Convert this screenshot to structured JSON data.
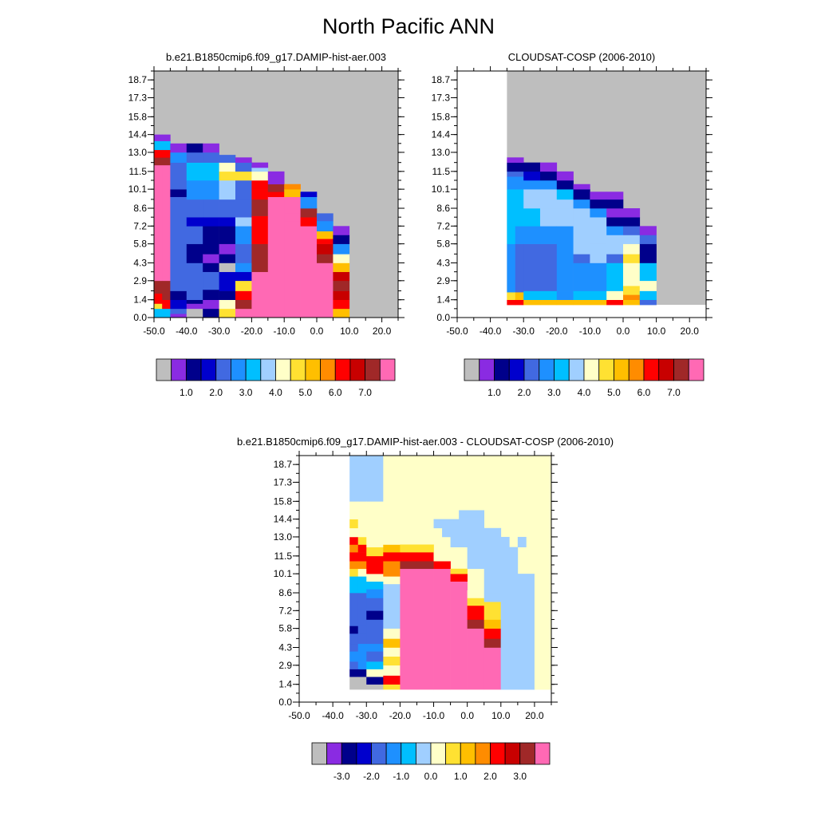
{
  "page_title": "North Pacific ANN",
  "chart_data": [
    {
      "type": "heatmap",
      "title": "b.e21.B1850cmip6.f09_g17.DAMIP-hist-aer.003",
      "x_ticks": [
        "-50.0",
        "-40.0",
        "-30.0",
        "-20.0",
        "-10.0",
        "0.0",
        "10.0",
        "20.0"
      ],
      "y_ticks": [
        "0.0",
        "1.4",
        "2.9",
        "4.3",
        "5.8",
        "7.2",
        "8.6",
        "10.1",
        "11.5",
        "13.0",
        "14.4",
        "15.8",
        "17.3",
        "18.7"
      ],
      "xlim": [
        -50,
        25
      ],
      "ylim": [
        0,
        19.4
      ],
      "colorbar_labels": [
        "1.0",
        "2.0",
        "3.0",
        "4.0",
        "5.0",
        "6.0",
        "7.0"
      ],
      "colors": [
        "#BEBEBE",
        "#8A2BE2",
        "#00008B",
        "#0000CD",
        "#4169E1",
        "#1E90FF",
        "#00BFFF",
        "#A0CFFF",
        "#FFFFC8",
        "#FFE132",
        "#FFBF00",
        "#FF8C00",
        "#FF0000",
        "#C80000",
        "#A02828",
        "#FF69B4"
      ],
      "description_note": "Cloud-fraction histogram, binned by x and height; colors index the colorbar levels."
    },
    {
      "type": "heatmap",
      "title": "CLOUDSAT-COSP (2006-2010)",
      "x_ticks": [
        "-50.0",
        "-40.0",
        "-30.0",
        "-20.0",
        "-10.0",
        "0.0",
        "10.0",
        "20.0"
      ],
      "y_ticks": [
        "0.0",
        "1.4",
        "2.9",
        "4.3",
        "5.8",
        "7.2",
        "8.6",
        "10.1",
        "11.5",
        "13.0",
        "14.4",
        "15.8",
        "17.3",
        "18.7"
      ],
      "xlim": [
        -50,
        25
      ],
      "ylim": [
        0,
        19.4
      ],
      "colorbar_labels": [
        "1.0",
        "2.0",
        "3.0",
        "4.0",
        "5.0",
        "6.0",
        "7.0"
      ],
      "colors": [
        "#BEBEBE",
        "#8A2BE2",
        "#00008B",
        "#0000CD",
        "#4169E1",
        "#1E90FF",
        "#00BFFF",
        "#A0CFFF",
        "#FFFFC8",
        "#FFE132",
        "#FFBF00",
        "#FF8C00",
        "#FF0000",
        "#C80000",
        "#A02828",
        "#FF69B4"
      ]
    },
    {
      "type": "heatmap",
      "title": "b.e21.B1850cmip6.f09_g17.DAMIP-hist-aer.003 - CLOUDSAT-COSP (2006-2010)",
      "x_ticks": [
        "-50.0",
        "-40.0",
        "-30.0",
        "-20.0",
        "-10.0",
        "0.0",
        "10.0",
        "20.0"
      ],
      "y_ticks": [
        "0.0",
        "1.4",
        "2.9",
        "4.3",
        "5.8",
        "7.2",
        "8.6",
        "10.1",
        "11.5",
        "13.0",
        "14.4",
        "15.8",
        "17.3",
        "18.7"
      ],
      "xlim": [
        -50,
        25
      ],
      "ylim": [
        0,
        19.4
      ],
      "colorbar_labels": [
        "-3.0",
        "-2.0",
        "-1.0",
        "0.0",
        "1.0",
        "2.0",
        "3.0"
      ],
      "colors": [
        "#BEBEBE",
        "#8A2BE2",
        "#00008B",
        "#0000CD",
        "#4169E1",
        "#1E90FF",
        "#00BFFF",
        "#A0CFFF",
        "#FFFFC8",
        "#FFE132",
        "#FFBF00",
        "#FF8C00",
        "#FF0000",
        "#C80000",
        "#A02828",
        "#FF69B4"
      ]
    }
  ]
}
